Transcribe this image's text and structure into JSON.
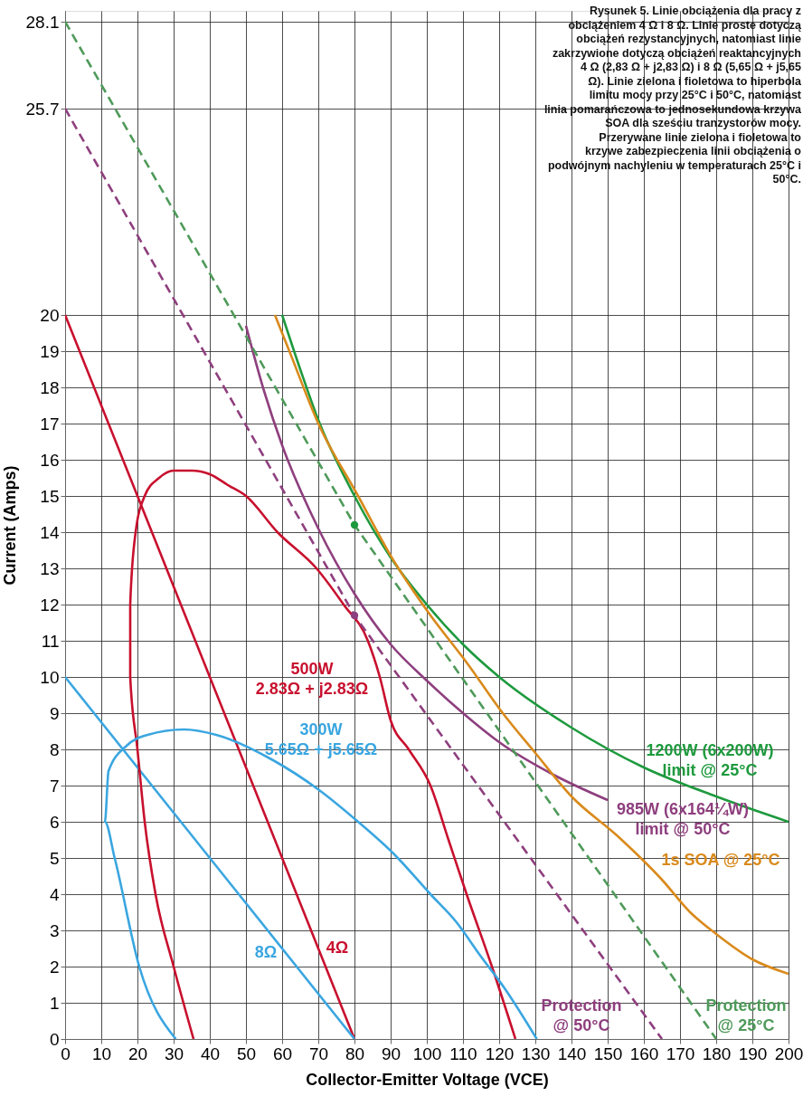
{
  "chart_data": {
    "type": "line",
    "xlabel": "Collector-Emitter Voltage (VCE)",
    "ylabel": "Current (Amps)",
    "xlim": [
      0,
      200
    ],
    "ylim": [
      0,
      28.4
    ],
    "xticks": [
      0,
      10,
      20,
      30,
      40,
      50,
      60,
      70,
      80,
      90,
      100,
      110,
      120,
      130,
      140,
      150,
      160,
      170,
      180,
      190,
      200
    ],
    "yticks": [
      0,
      1,
      2,
      3,
      4,
      5,
      6,
      7,
      8,
      9,
      10,
      11,
      12,
      13,
      14,
      15,
      16,
      17,
      18,
      19,
      20,
      {
        "value": 25.7,
        "label": "25.7"
      },
      {
        "value": 28.1,
        "label": "28.1"
      }
    ],
    "grid": true,
    "legend": false,
    "series": [
      {
        "name": "4Ω",
        "color": "#c8102e",
        "x": [
          0,
          80
        ],
        "values": [
          20,
          0
        ]
      },
      {
        "name": "8Ω",
        "color": "#3aa6e0",
        "x": [
          0,
          80
        ],
        "values": [
          10,
          0
        ]
      },
      {
        "name": "500W\n2.83Ω + j2.83Ω",
        "color": "#c8102e",
        "x": [
          35.5,
          30,
          25,
          22,
          20,
          18,
          18,
          19.5,
          22,
          26,
          30,
          35,
          40,
          45,
          50,
          58.7,
          69.5,
          77,
          83.7,
          87,
          90,
          95,
          101,
          106,
          111,
          118,
          124.5
        ],
        "values": [
          0,
          2,
          4,
          6,
          8,
          10,
          12,
          14,
          15,
          15.5,
          15.7,
          15.7,
          15.6,
          15.3,
          15,
          14,
          13,
          12,
          11,
          10,
          8.8,
          8,
          7,
          5.5,
          4,
          2,
          0
        ]
      },
      {
        "name": "300W\n5.65Ω + j5.65Ω",
        "color": "#3aa6e0",
        "x": [
          30.6,
          20.5,
          13.7,
          11,
          12,
          17,
          22.8,
          32.9,
          41.8,
          57.5,
          69.9,
          81,
          91,
          101,
          108,
          114.8,
          121.5,
          130.4
        ],
        "values": [
          0,
          2,
          5,
          6,
          7.4,
          8.1,
          8.4,
          8.55,
          8.4,
          7.7,
          6.9,
          6,
          5.1,
          4,
          3.25,
          2.3,
          1.4,
          0
        ]
      },
      {
        "name": "1200W (6x200W)\nlimit @ 25°C",
        "color": "#1e9a3e",
        "x": [
          60,
          65,
          70,
          80,
          90,
          100,
          110,
          120,
          140,
          160,
          180,
          200
        ],
        "values": [
          20,
          18.5,
          17.1,
          15,
          13.3,
          12,
          10.9,
          10,
          8.6,
          7.5,
          6.7,
          6
        ]
      },
      {
        "name": "985W (6x164¼W)\nlimit @ 50°C",
        "color": "#8e3f7e",
        "x": [
          50,
          55,
          60,
          70,
          80,
          90,
          100,
          110,
          120,
          135,
          150
        ],
        "values": [
          19.7,
          17.9,
          16.4,
          14.1,
          12.3,
          10.9,
          9.9,
          9,
          8.2,
          7.3,
          6.6
        ]
      },
      {
        "name": "1s SOA @ 25°C",
        "color": "#d98a1c",
        "x": [
          58,
          62,
          70,
          81,
          90.3,
          100.3,
          111,
          121,
          130,
          140,
          152.8,
          165,
          172.8,
          180,
          190,
          200
        ],
        "values": [
          20,
          19,
          17,
          15,
          13.3,
          11.8,
          10.4,
          9,
          7.9,
          6.7,
          5.6,
          4.4,
          3.5,
          2.9,
          2.2,
          1.8
        ]
      },
      {
        "name": "Protection\n@ 25°C",
        "color": "#4f9a5a",
        "line_style": "dashed",
        "x": [
          0,
          80,
          180
        ],
        "values": [
          28.1,
          14.2,
          0
        ]
      },
      {
        "name": "Protection\n@ 50°C",
        "color": "#8e3f7e",
        "line_style": "dashed",
        "x": [
          0,
          80,
          165
        ],
        "values": [
          25.7,
          11.7,
          0
        ]
      },
      {
        "type": "scatter",
        "color": "#1e9a3e",
        "x": [
          80
        ],
        "values": [
          14.2
        ]
      },
      {
        "type": "scatter",
        "color": "#8e3f7e",
        "x": [
          80
        ],
        "values": [
          11.7
        ]
      }
    ],
    "annotations": [
      "Rysunek 5. Linie obciążenia dla pracy z obciążeniem 4 Ω i 8 Ω. Linie proste dotyczą obciążeń rezystancyjnych, natomiast linie zakrzywione dotyczą obciążeń reaktancyjnych 4 Ω (2,83 Ω + j2,83 Ω) i 8 Ω (5,65 Ω + j5,65 Ω). Linie zielona i fioletowa to hiperbola limitu mocy przy 25°C i 50°C, natomiast linia pomarańczowa to jednosekundowa krzywa SOA dla sześciu tranzystorów mocy. Przerywane linie zielona i fioletowa to krzywe zabezpieczenia linii obciążenia o podwójnym nachyleniu w temperaturach 25°C i 50°C."
    ]
  }
}
